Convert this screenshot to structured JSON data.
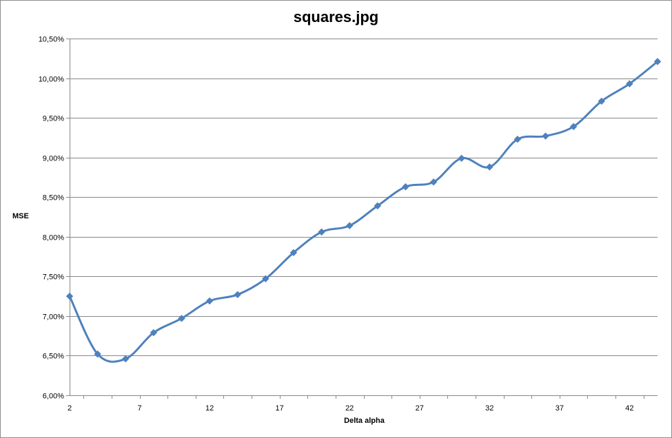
{
  "chart_data": {
    "type": "line",
    "title": "squares.jpg",
    "xlabel": "Delta alpha",
    "ylabel": "MSE",
    "x": [
      2,
      4,
      6,
      8,
      10,
      12,
      14,
      16,
      18,
      20,
      22,
      24,
      26,
      28,
      30,
      32,
      34,
      36,
      38,
      40,
      42,
      44
    ],
    "series": [
      {
        "values": [
          7.25,
          6.52,
          6.46,
          6.79,
          6.97,
          7.19,
          7.27,
          7.47,
          7.8,
          8.06,
          8.14,
          8.39,
          8.63,
          8.69,
          8.99,
          8.88,
          9.23,
          9.27,
          9.39,
          9.71,
          9.93,
          10.21
        ]
      }
    ],
    "x_ticks": [
      "2",
      "7",
      "12",
      "17",
      "22",
      "27",
      "32",
      "37",
      "42"
    ],
    "y_ticks": [
      "6,00%",
      "6,50%",
      "7,00%",
      "7,50%",
      "8,00%",
      "8,50%",
      "9,00%",
      "9,50%",
      "10,00%",
      "10,50%"
    ],
    "ylim": [
      6.0,
      10.5
    ],
    "y_unit": "%",
    "grid": "horizontal",
    "legend": "none",
    "colors": {
      "line": "#4f81bd",
      "grid": "#868686",
      "axis": "#868686"
    }
  }
}
